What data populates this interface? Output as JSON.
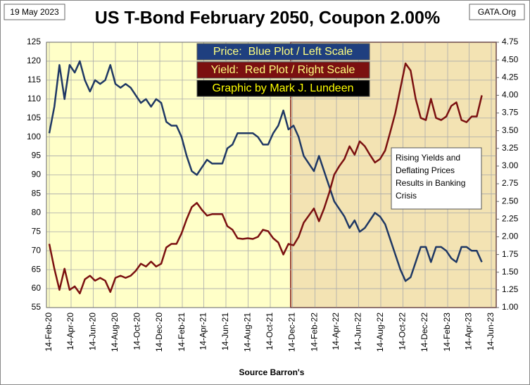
{
  "chart_data": {
    "type": "line",
    "title": "US T-Bond February 2050, Coupon 2.00%",
    "date_stamp": "19 May 2023",
    "source": "GATA.Org",
    "x_label": "Source Barron's",
    "legend_boxes": [
      "Price:  Blue Plot / Left Scale",
      "Yield:  Red Plot / Right Scale",
      "Graphic by Mark J. Lundeen"
    ],
    "annotation": [
      "Rising Yields and",
      "Deflating Prices",
      "Results in Banking",
      "Crisis"
    ],
    "grid": true,
    "x": [
      "2020-02-14",
      "2020-02-28",
      "2020-03-13",
      "2020-03-27",
      "2020-04-10",
      "2020-04-24",
      "2020-05-08",
      "2020-05-22",
      "2020-06-05",
      "2020-06-19",
      "2020-07-03",
      "2020-07-17",
      "2020-07-31",
      "2020-08-14",
      "2020-08-28",
      "2020-09-11",
      "2020-09-25",
      "2020-10-09",
      "2020-10-23",
      "2020-11-06",
      "2020-11-20",
      "2020-12-04",
      "2020-12-18",
      "2021-01-01",
      "2021-01-15",
      "2021-01-29",
      "2021-02-12",
      "2021-02-26",
      "2021-03-12",
      "2021-03-26",
      "2021-04-09",
      "2021-04-23",
      "2021-05-07",
      "2021-05-21",
      "2021-06-04",
      "2021-06-18",
      "2021-07-02",
      "2021-07-16",
      "2021-07-30",
      "2021-08-13",
      "2021-08-27",
      "2021-09-10",
      "2021-09-24",
      "2021-10-08",
      "2021-10-22",
      "2021-11-05",
      "2021-11-19",
      "2021-12-03",
      "2021-12-17",
      "2021-12-31",
      "2022-01-14",
      "2022-01-28",
      "2022-02-11",
      "2022-02-25",
      "2022-03-11",
      "2022-03-25",
      "2022-04-08",
      "2022-04-22",
      "2022-05-06",
      "2022-05-20",
      "2022-06-03",
      "2022-06-17",
      "2022-07-01",
      "2022-07-15",
      "2022-07-29",
      "2022-08-12",
      "2022-08-26",
      "2022-09-09",
      "2022-09-23",
      "2022-10-07",
      "2022-10-21",
      "2022-11-04",
      "2022-11-18",
      "2022-12-02",
      "2022-12-16",
      "2022-12-30",
      "2023-01-13",
      "2023-01-27",
      "2023-02-10",
      "2023-02-24",
      "2023-03-10",
      "2023-03-24",
      "2023-04-07",
      "2023-04-21",
      "2023-05-05",
      "2023-05-19"
    ],
    "xlim": [
      "2020-02-14",
      "2023-06-14"
    ],
    "xticks": [
      {
        "value": "2020-02-14",
        "label": "14-Feb-20"
      },
      {
        "value": "2020-04-14",
        "label": "14-Apr-20"
      },
      {
        "value": "2020-06-14",
        "label": "14-Jun-20"
      },
      {
        "value": "2020-08-14",
        "label": "14-Aug-20"
      },
      {
        "value": "2020-10-14",
        "label": "14-Oct-20"
      },
      {
        "value": "2020-12-14",
        "label": "14-Dec-20"
      },
      {
        "value": "2021-02-14",
        "label": "14-Feb-21"
      },
      {
        "value": "2021-04-14",
        "label": "14-Apr-21"
      },
      {
        "value": "2021-06-14",
        "label": "14-Jun-21"
      },
      {
        "value": "2021-08-14",
        "label": "14-Aug-21"
      },
      {
        "value": "2021-10-14",
        "label": "14-Oct-21"
      },
      {
        "value": "2021-12-14",
        "label": "14-Dec-21"
      },
      {
        "value": "2022-02-14",
        "label": "14-Feb-22"
      },
      {
        "value": "2022-04-14",
        "label": "14-Apr-22"
      },
      {
        "value": "2022-06-14",
        "label": "14-Jun-22"
      },
      {
        "value": "2022-08-14",
        "label": "14-Aug-22"
      },
      {
        "value": "2022-10-14",
        "label": "14-Oct-22"
      },
      {
        "value": "2022-12-14",
        "label": "14-Dec-22"
      },
      {
        "value": "2023-02-14",
        "label": "14-Feb-23"
      },
      {
        "value": "2023-04-14",
        "label": "14-Apr-23"
      },
      {
        "value": "2023-06-14",
        "label": "14-Jun-23"
      }
    ],
    "ylim": [
      55,
      125
    ],
    "yticks": [
      55,
      60,
      65,
      70,
      75,
      80,
      85,
      90,
      95,
      100,
      105,
      110,
      115,
      120,
      125
    ],
    "y2lim": [
      1,
      4.75
    ],
    "y2ticks": [
      {
        "value": 1,
        "label": "1.00"
      },
      {
        "value": 1.25,
        "label": "1.25"
      },
      {
        "value": 1.5,
        "label": "1.50"
      },
      {
        "value": 1.75,
        "label": "1.75"
      },
      {
        "value": 2,
        "label": "2.00"
      },
      {
        "value": 2.25,
        "label": "2.25"
      },
      {
        "value": 2.5,
        "label": "2.50"
      },
      {
        "value": 2.75,
        "label": "2.75"
      },
      {
        "value": 3,
        "label": "3.00"
      },
      {
        "value": 3.25,
        "label": "3.25"
      },
      {
        "value": 3.5,
        "label": "3.50"
      },
      {
        "value": 3.75,
        "label": "3.75"
      },
      {
        "value": 4,
        "label": "4.00"
      },
      {
        "value": 4.25,
        "label": "4.25"
      },
      {
        "value": 4.5,
        "label": "4.50"
      },
      {
        "value": 4.75,
        "label": "4.75"
      }
    ],
    "series": [
      {
        "name": "Price",
        "color": "#1f3864",
        "values": [
          101,
          108,
          119,
          110,
          119,
          117,
          120,
          115,
          112,
          115,
          114,
          115,
          119,
          114,
          113,
          114,
          113,
          111,
          109,
          110,
          108,
          110,
          109,
          104,
          103,
          103,
          100,
          95,
          91,
          90,
          92,
          94,
          93,
          93,
          93,
          97,
          98,
          101,
          101,
          101,
          101,
          100,
          98,
          98,
          101,
          103,
          107,
          102,
          103,
          100,
          95,
          93,
          91,
          95,
          91,
          87,
          83,
          81,
          79,
          76,
          78,
          75,
          76,
          78,
          80,
          79,
          77,
          73,
          69,
          65,
          62,
          63,
          67,
          71,
          71,
          67,
          71,
          71,
          70,
          68,
          67,
          71,
          71,
          70,
          70,
          67
        ]
      },
      {
        "name": "Yield",
        "color": "#7b1010",
        "axis": "y2",
        "values": [
          1.9,
          1.55,
          1.25,
          1.55,
          1.25,
          1.3,
          1.2,
          1.4,
          1.45,
          1.38,
          1.42,
          1.38,
          1.22,
          1.42,
          1.45,
          1.42,
          1.45,
          1.52,
          1.62,
          1.58,
          1.65,
          1.58,
          1.62,
          1.85,
          1.9,
          1.9,
          2.05,
          2.25,
          2.42,
          2.48,
          2.38,
          2.3,
          2.32,
          2.32,
          2.32,
          2.15,
          2.1,
          1.98,
          1.97,
          1.98,
          1.97,
          2.0,
          2.1,
          2.08,
          1.98,
          1.92,
          1.75,
          1.9,
          1.88,
          2.0,
          2.2,
          2.3,
          2.4,
          2.22,
          2.4,
          2.62,
          2.88,
          3.0,
          3.1,
          3.28,
          3.16,
          3.35,
          3.28,
          3.16,
          3.05,
          3.1,
          3.22,
          3.48,
          3.75,
          4.1,
          4.45,
          4.35,
          3.95,
          3.68,
          3.65,
          3.95,
          3.68,
          3.65,
          3.7,
          3.85,
          3.9,
          3.65,
          3.62,
          3.7,
          3.7,
          4.0
        ]
      }
    ]
  }
}
